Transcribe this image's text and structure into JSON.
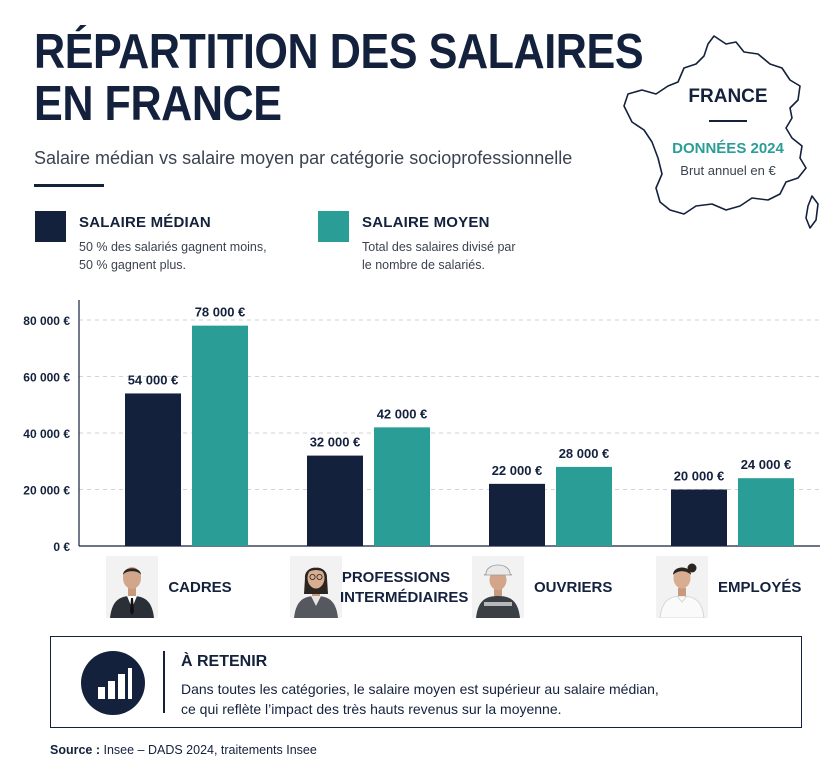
{
  "header": {
    "title_line1": "RÉPARTITION DES SALAIRES",
    "title_line2": "EN FRANCE",
    "subtitle": "Salaire médian vs salaire moyen par catégorie socioprofessionnelle"
  },
  "map_badge": {
    "country": "FRANCE",
    "year": "DONNÉES 2024",
    "unit": "Brut annuel en €"
  },
  "legend": [
    {
      "title": "SALAIRE MÉDIAN",
      "desc_line1": "50 % des salariés gagnent moins,",
      "desc_line2": "50 % gagnent plus.",
      "color": "#14213d"
    },
    {
      "title": "SALAIRE MOYEN",
      "desc_line1": "Total des salaires divisé par",
      "desc_line2": "le nombre de salariés.",
      "color": "#2a9d96"
    }
  ],
  "categories": [
    {
      "line1": "CADRES",
      "line2": "",
      "photo": "male-executive-icon"
    },
    {
      "line1": "PROFESSIONS",
      "line2": "INTERMÉDIAIRES",
      "photo": "female-professional-icon"
    },
    {
      "line1": "OUVRIERS",
      "line2": "",
      "photo": "construction-worker-icon"
    },
    {
      "line1": "EMPLOYÉS",
      "line2": "",
      "photo": "female-employee-icon"
    }
  ],
  "chart_data": {
    "type": "bar",
    "categories": [
      "CADRES",
      "PROFESSIONS INTERMÉDIAIRES",
      "OUVRIERS",
      "EMPLOYÉS"
    ],
    "series": [
      {
        "name": "SALAIRE MÉDIAN",
        "color": "#14213d",
        "values": [
          54000,
          32000,
          22000,
          20000
        ],
        "labels": [
          "54 000 €",
          "32 000 €",
          "22 000 €",
          "20 000 €"
        ]
      },
      {
        "name": "SALAIRE MOYEN",
        "color": "#2a9d96",
        "values": [
          78000,
          42000,
          28000,
          24000
        ],
        "labels": [
          "78 000 €",
          "42 000 €",
          "28 000 €",
          "24 000 €"
        ]
      }
    ],
    "yticks": [
      0,
      20000,
      40000,
      60000,
      80000
    ],
    "ytick_labels": [
      "0 €",
      "20 000 €",
      "40 000 €",
      "60 000 €",
      "80 000 €"
    ],
    "ylim": [
      0,
      80000
    ],
    "grid": true,
    "legend_position": "top-left"
  },
  "retain": {
    "title": "À RETENIR",
    "line1": "Dans toutes les catégories, le salaire moyen est supérieur au salaire médian,",
    "line2": "ce qui reflète l’impact des très hauts revenus sur la moyenne.",
    "icon": "bar-chart-icon"
  },
  "source": {
    "label": "Source :",
    "text": " Insee – DADS 2024, traitements Insee"
  }
}
